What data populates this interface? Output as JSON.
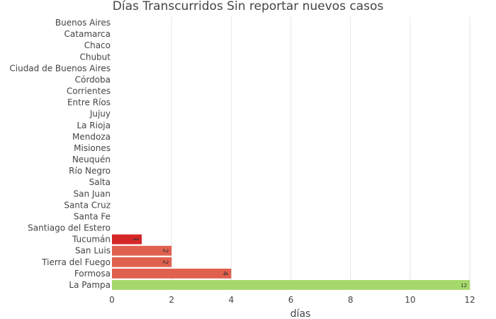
{
  "chart_data": {
    "type": "bar",
    "orientation": "horizontal",
    "title": "Días Transcurridos Sin reportar nuevos casos",
    "xlabel": "días",
    "ylabel": "",
    "xlim": [
      0,
      12
    ],
    "x_ticks": [
      0,
      2,
      4,
      6,
      8,
      10,
      12
    ],
    "grid": true,
    "categories": [
      "Buenos Aires",
      "Catamarca",
      "Chaco",
      "Chubut",
      "Ciudad de Buenos Aires",
      "Córdoba",
      "Corrientes",
      "Entre Ríos",
      "Jujuy",
      "La Rioja",
      "Mendoza",
      "Misiones",
      "Neuquén",
      "Río Negro",
      "Salta",
      "San Juan",
      "Santa Cruz",
      "Santa Fe",
      "Santiago del Estero",
      "Tucumán",
      "San Luis",
      "Tierra del Fuego",
      "Formosa",
      "La Pampa"
    ],
    "values": [
      0,
      0,
      0,
      0,
      0,
      0,
      0,
      0,
      0,
      0,
      0,
      0,
      0,
      0,
      0,
      0,
      0,
      0,
      0,
      1,
      2,
      2,
      4,
      12
    ],
    "colors": [
      "",
      "",
      "",
      "",
      "",
      "",
      "",
      "",
      "",
      "",
      "",
      "",
      "",
      "",
      "",
      "",
      "",
      "",
      "",
      "#d62728",
      "#e0604e",
      "#e0604e",
      "#e0604e",
      "#a4d86b"
    ]
  }
}
